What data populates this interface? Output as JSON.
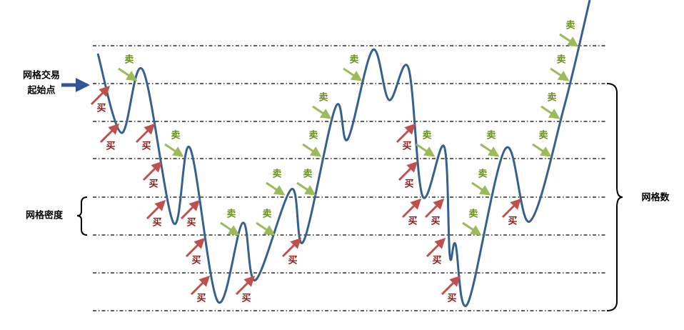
{
  "labels": {
    "start": [
      "网格交易",
      "起始点"
    ],
    "density": "网格密度",
    "count": "网格数"
  },
  "buy_signals": [
    "买",
    "买",
    "买",
    "买",
    "买",
    "买",
    "买",
    "买",
    "买",
    "买",
    "买",
    "买",
    "买",
    "买",
    "买",
    "买",
    "买"
  ],
  "sell_signals": [
    "卖",
    "卖",
    "卖",
    "卖",
    "卖",
    "卖",
    "卖",
    "卖",
    "卖",
    "卖",
    "卖",
    "卖",
    "卖",
    "卖",
    "卖",
    "卖",
    "卖"
  ]
}
